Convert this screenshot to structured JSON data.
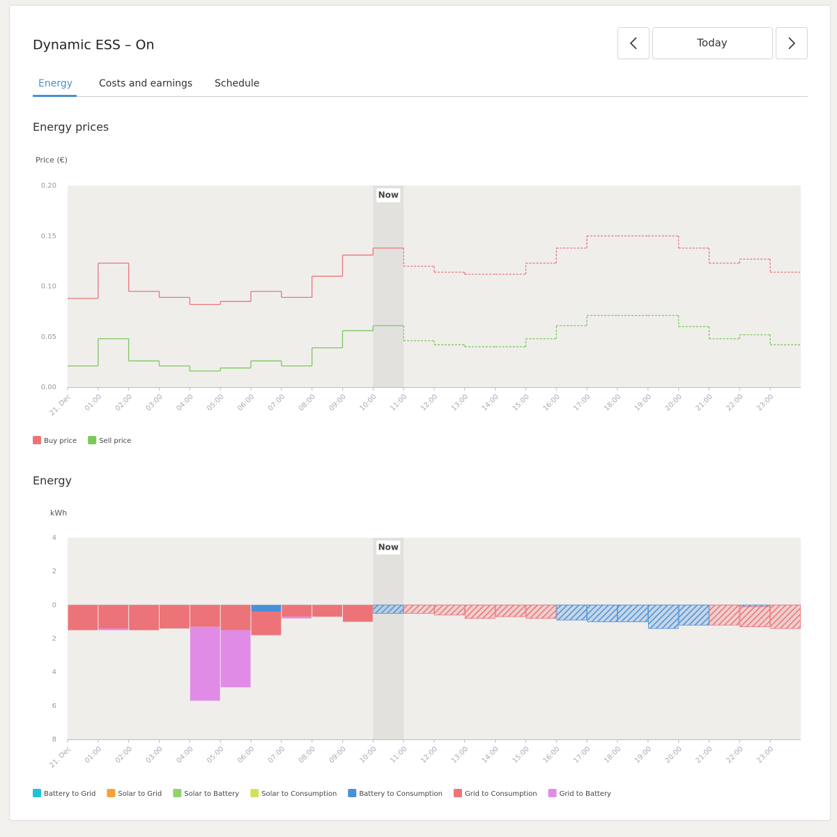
{
  "header": {
    "title": "Dynamic ESS – On",
    "date_button": "Today"
  },
  "tabs": [
    "Energy",
    "Costs and earnings",
    "Schedule"
  ],
  "chart_data": [
    {
      "type": "line",
      "step": true,
      "title": "Energy prices",
      "y_label": "Price (€)",
      "categories": [
        "21. Dec",
        "01:00",
        "02:00",
        "03:00",
        "04:00",
        "05:00",
        "06:00",
        "07:00",
        "08:00",
        "09:00",
        "10:00",
        "11:00",
        "12:00",
        "13:00",
        "14:00",
        "15:00",
        "16:00",
        "17:00",
        "18:00",
        "19:00",
        "20:00",
        "21:00",
        "22:00",
        "23:00"
      ],
      "series": [
        {
          "name": "Buy price",
          "color": "#ec7479",
          "values": [
            0.088,
            0.123,
            0.095,
            0.089,
            0.082,
            0.085,
            0.095,
            0.089,
            0.11,
            0.131,
            0.138,
            0.12,
            0.114,
            0.112,
            0.112,
            0.123,
            0.138,
            0.15,
            0.15,
            0.15,
            0.138,
            0.123,
            0.127,
            0.114
          ]
        },
        {
          "name": "Sell price",
          "color": "#7cc85a",
          "values": [
            0.021,
            0.048,
            0.026,
            0.021,
            0.016,
            0.019,
            0.026,
            0.021,
            0.039,
            0.056,
            0.061,
            0.046,
            0.042,
            0.04,
            0.04,
            0.048,
            0.061,
            0.071,
            0.071,
            0.071,
            0.06,
            0.048,
            0.052,
            0.042
          ]
        }
      ],
      "ylim": [
        0,
        0.2
      ],
      "yticks": [
        {
          "value": 0,
          "label": "0.00"
        },
        0.05,
        {
          "value": 0.1,
          "label": "0.10"
        },
        0.15,
        {
          "value": 0.2,
          "label": "0.20"
        }
      ],
      "annotation": {
        "label": "Now",
        "category": "10:00"
      },
      "legend": "bottom-left"
    },
    {
      "type": "bar",
      "stacked": true,
      "title": "Energy",
      "y_label": "kWh",
      "categories": [
        "21. Dec",
        "01:00",
        "02:00",
        "03:00",
        "04:00",
        "05:00",
        "06:00",
        "07:00",
        "08:00",
        "09:00",
        "10:00",
        "11:00",
        "12:00",
        "13:00",
        "14:00",
        "15:00",
        "16:00",
        "17:00",
        "18:00",
        "19:00",
        "20:00",
        "21:00",
        "22:00",
        "23:00"
      ],
      "series": [
        {
          "name": "Battery to Grid",
          "color": "#1cc2d8",
          "values": [
            0,
            0,
            0,
            0,
            0,
            0,
            0,
            0,
            0,
            0,
            0,
            0,
            0,
            0,
            0,
            0,
            0,
            0,
            0,
            0,
            0,
            0,
            0,
            0
          ]
        },
        {
          "name": "Solar to Grid",
          "color": "#f4a23a",
          "values": [
            0,
            0,
            0,
            0,
            0,
            0,
            0,
            0,
            0,
            0,
            0,
            0,
            0,
            0,
            0,
            0,
            0,
            0,
            0,
            0,
            0,
            0,
            0,
            0
          ]
        },
        {
          "name": "Solar to Battery",
          "color": "#8fd36c",
          "values": [
            0,
            0,
            0,
            0,
            0,
            0,
            0,
            0,
            0,
            0,
            0,
            0,
            0,
            0,
            0,
            0,
            0,
            0,
            0,
            0,
            0,
            0,
            0,
            0
          ]
        },
        {
          "name": "Solar to Consumption",
          "color": "#d3e05a",
          "values": [
            0,
            0,
            0,
            0,
            0,
            0,
            0,
            0,
            0,
            0,
            0,
            0,
            0,
            0,
            0,
            0,
            0,
            0,
            0,
            0,
            0,
            0,
            0,
            0
          ]
        },
        {
          "name": "Battery to Consumption",
          "color": "#4a90d9",
          "values": [
            0,
            0,
            0,
            0,
            0,
            0,
            -0.4,
            0,
            0,
            0,
            -0.5,
            0,
            0,
            0,
            0,
            0,
            -0.9,
            -1.0,
            -1.0,
            -1.4,
            -1.2,
            0,
            -0.1,
            0
          ]
        },
        {
          "name": "Grid to Consumption",
          "color": "#ec7479",
          "values": [
            -1.5,
            -1.4,
            -1.5,
            -1.4,
            -1.3,
            -1.5,
            -1.4,
            -0.7,
            -0.7,
            -1.0,
            0,
            -0.5,
            -0.6,
            -0.8,
            -0.7,
            -0.8,
            0,
            0,
            0,
            0,
            0,
            -1.2,
            -1.2,
            -1.4
          ]
        },
        {
          "name": "Grid to Battery",
          "color": "#e08be6",
          "values": [
            0,
            -0.1,
            0,
            0,
            -4.4,
            -3.4,
            0,
            -0.1,
            0,
            0,
            0,
            0,
            0,
            0,
            0,
            0,
            0,
            0,
            0,
            0,
            0,
            0,
            0,
            0
          ]
        }
      ],
      "ylim": [
        -8,
        4
      ],
      "yticks": [
        {
          "value": -8,
          "label": "8"
        },
        {
          "value": -6,
          "label": "6"
        },
        {
          "value": -4,
          "label": "4"
        },
        {
          "value": -2,
          "label": "2"
        },
        0,
        2,
        4
      ],
      "annotation": {
        "label": "Now",
        "category": "10:00"
      },
      "legend": "bottom-left"
    }
  ]
}
